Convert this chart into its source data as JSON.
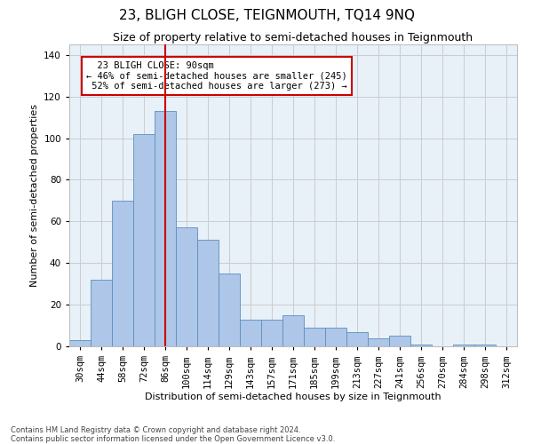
{
  "title": "23, BLIGH CLOSE, TEIGNMOUTH, TQ14 9NQ",
  "subtitle": "Size of property relative to semi-detached houses in Teignmouth",
  "xlabel": "Distribution of semi-detached houses by size in Teignmouth",
  "ylabel": "Number of semi-detached properties",
  "footer_line1": "Contains HM Land Registry data © Crown copyright and database right 2024.",
  "footer_line2": "Contains public sector information licensed under the Open Government Licence v3.0.",
  "categories": [
    "30sqm",
    "44sqm",
    "58sqm",
    "72sqm",
    "86sqm",
    "100sqm",
    "114sqm",
    "129sqm",
    "143sqm",
    "157sqm",
    "171sqm",
    "185sqm",
    "199sqm",
    "213sqm",
    "227sqm",
    "241sqm",
    "256sqm",
    "270sqm",
    "284sqm",
    "298sqm",
    "312sqm"
  ],
  "values": [
    3,
    32,
    70,
    102,
    113,
    57,
    51,
    35,
    13,
    13,
    15,
    9,
    9,
    7,
    4,
    5,
    1,
    0,
    1,
    1,
    0
  ],
  "bar_color": "#aec6e8",
  "bar_edge_color": "#5a8fc0",
  "property_bin_index": 4,
  "vline_color": "#cc0000",
  "annotation_text_line1": "23 BLIGH CLOSE: 90sqm",
  "annotation_text_line2": "← 46% of semi-detached houses are smaller (245)",
  "annotation_text_line3": "52% of semi-detached houses are larger (273) →",
  "annotation_box_color": "#ffffff",
  "annotation_box_edge_color": "#cc0000",
  "ylim": [
    0,
    145
  ],
  "yticks": [
    0,
    20,
    40,
    60,
    80,
    100,
    120,
    140
  ],
  "grid_color": "#cccccc",
  "bg_color": "#e8f0f8",
  "title_fontsize": 11,
  "subtitle_fontsize": 9,
  "axis_label_fontsize": 8,
  "tick_fontsize": 7.5,
  "footer_fontsize": 6
}
